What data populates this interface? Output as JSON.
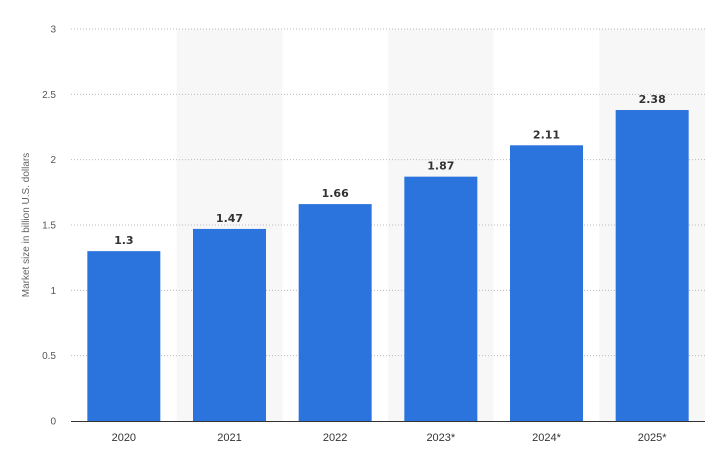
{
  "chart_data": {
    "type": "bar",
    "title": "",
    "xlabel": "",
    "ylabel": "Market size in billion U.S. dollars",
    "categories": [
      "2020",
      "2021",
      "2022",
      "2023*",
      "2024*",
      "2025*"
    ],
    "values": [
      1.3,
      1.47,
      1.66,
      1.87,
      2.11,
      2.38
    ],
    "data_labels": [
      "1.3",
      "1.47",
      "1.66",
      "1.87",
      "2.11",
      "2.38"
    ],
    "ylim": [
      0,
      3
    ],
    "yticks": [
      0,
      0.5,
      1,
      1.5,
      2,
      2.5,
      3
    ],
    "ytick_labels": [
      "0",
      "0.5",
      "1",
      "1.5",
      "2",
      "2.5",
      "3"
    ],
    "grid": true,
    "legend": "none",
    "bar_color": "#2b74de",
    "band_color": "#f7f7f7",
    "grid_color": "#bbbbbb"
  }
}
